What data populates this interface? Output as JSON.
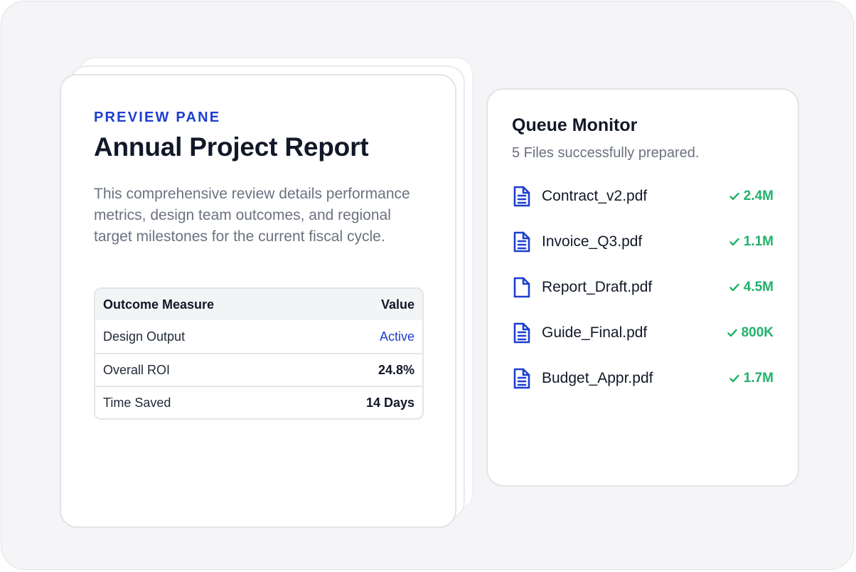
{
  "preview": {
    "eyebrow": "PREVIEW PANE",
    "title": "Annual Project Report",
    "description": "This comprehensive review details performance metrics, design team outcomes, and regional target milestones for the current fiscal cycle.",
    "table": {
      "headers": [
        "Outcome Measure",
        "Value"
      ],
      "rows": [
        {
          "measure": "Design Output",
          "value": "Active"
        },
        {
          "measure": "Overall ROI",
          "value": "24.8%"
        },
        {
          "measure": "Time Saved",
          "value": "14 Days"
        }
      ]
    }
  },
  "queue": {
    "title": "Queue Monitor",
    "subtitle": "5 Files successfully prepared.",
    "files": [
      {
        "name": "Contract_v2.pdf",
        "size": "2.4M",
        "icon": "file-text-icon"
      },
      {
        "name": "Invoice_Q3.pdf",
        "size": "1.1M",
        "icon": "file-text-icon"
      },
      {
        "name": "Report_Draft.pdf",
        "size": "4.5M",
        "icon": "file-icon"
      },
      {
        "name": "Guide_Final.pdf",
        "size": "800K",
        "icon": "file-text-icon"
      },
      {
        "name": "Budget_Appr.pdf",
        "size": "1.7M",
        "icon": "file-text-icon"
      }
    ]
  },
  "colors": {
    "accent": "#1d3fcf",
    "success": "#22b26b",
    "text": "#111827",
    "muted": "#6b7280"
  }
}
